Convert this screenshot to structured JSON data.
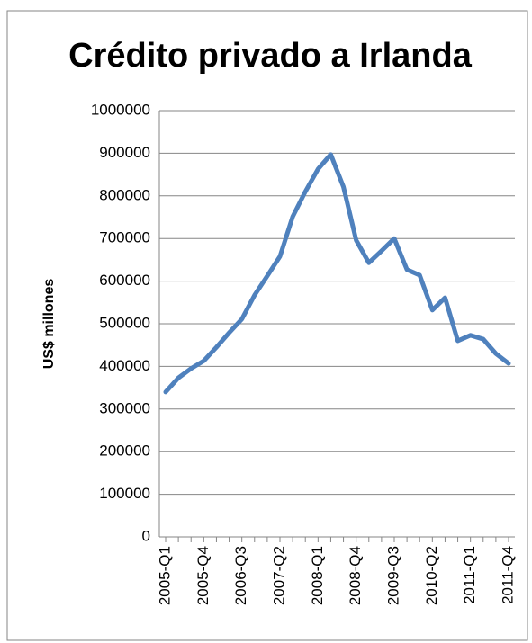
{
  "chart_data": {
    "type": "line",
    "title": "Crédito privado a Irlanda",
    "y_label": "US$ millones",
    "categories": [
      "2005-Q1",
      null,
      null,
      "2005-Q4",
      null,
      null,
      "2006-Q3",
      null,
      null,
      "2007-Q2",
      null,
      null,
      "2008-Q1",
      null,
      null,
      "2008-Q4",
      null,
      null,
      "2009-Q3",
      null,
      null,
      "2010-Q2",
      null,
      null,
      "2011-Q1",
      null,
      null,
      "2011-Q4"
    ],
    "series": [
      {
        "color": "#4f81bd",
        "values": [
          340000,
          373000,
          395000,
          413000,
          445000,
          479000,
          511000,
          567000,
          612000,
          658000,
          751000,
          810000,
          863000,
          897000,
          821000,
          696000,
          643000,
          671000,
          700000,
          627000,
          614000,
          532000,
          561000,
          460000,
          473000,
          464000,
          430000,
          407000
        ]
      }
    ],
    "ylim": [
      0,
      1000000
    ],
    "yticks": [
      0,
      100000,
      200000,
      300000,
      400000,
      500000,
      600000,
      700000,
      800000,
      900000,
      1000000
    ],
    "grid": true
  }
}
